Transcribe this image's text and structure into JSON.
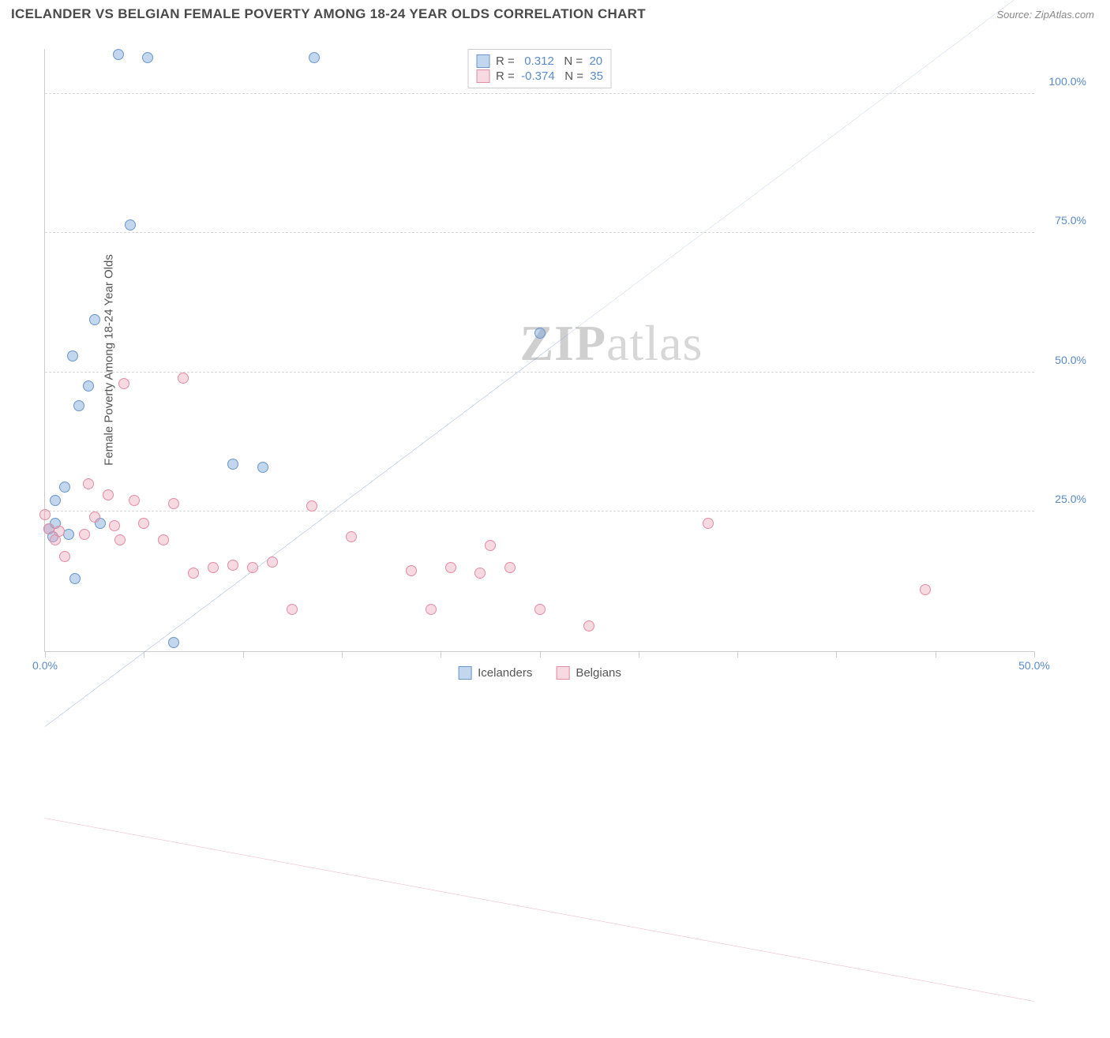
{
  "header": {
    "title": "ICELANDER VS BELGIAN FEMALE POVERTY AMONG 18-24 YEAR OLDS CORRELATION CHART",
    "source": "Source: ZipAtlas.com"
  },
  "watermark": {
    "zip": "ZIP",
    "rest": "atlas"
  },
  "chart": {
    "type": "scatter",
    "y_label": "Female Poverty Among 18-24 Year Olds",
    "xlim": [
      0,
      50
    ],
    "ylim": [
      0,
      108
    ],
    "x_ticks": [
      0,
      5,
      10,
      15,
      20,
      25,
      30,
      35,
      40,
      45,
      50
    ],
    "x_tick_labels": {
      "0": "0.0%",
      "50": "50.0%"
    },
    "y_gridlines": [
      25,
      50,
      75,
      100
    ],
    "y_tick_labels": {
      "25": "25.0%",
      "50": "50.0%",
      "75": "75.0%",
      "100": "100.0%"
    },
    "marker_size": 14,
    "background_color": "#ffffff",
    "grid_color": "#d8d8d8",
    "axis_color": "#cccccc",
    "tick_label_color": "#5b8ac7",
    "series": [
      {
        "name": "Icelanders",
        "R": "0.312",
        "N": "20",
        "color_fill": "rgba(120,165,216,0.45)",
        "color_stroke": "#6a96c9",
        "trend": {
          "x1": 0,
          "y1": 34,
          "x2": 50,
          "y2": 115,
          "solid_to_x": 26,
          "color": "#2f6bc0",
          "width": 2.5
        },
        "points": [
          [
            3.7,
            107
          ],
          [
            5.2,
            106.5
          ],
          [
            13.6,
            106.5
          ],
          [
            4.3,
            76.5
          ],
          [
            2.5,
            59.5
          ],
          [
            1.4,
            53
          ],
          [
            2.2,
            47.5
          ],
          [
            1.7,
            44
          ],
          [
            9.5,
            33.5
          ],
          [
            11,
            33
          ],
          [
            25,
            57
          ],
          [
            1.0,
            29.5
          ],
          [
            0.5,
            27
          ],
          [
            0.2,
            22
          ],
          [
            0.5,
            23
          ],
          [
            0.4,
            20.5
          ],
          [
            1.2,
            21
          ],
          [
            2.8,
            23
          ],
          [
            1.5,
            13
          ],
          [
            6.5,
            1.5
          ]
        ]
      },
      {
        "name": "Belgians",
        "R": "-0.374",
        "N": "35",
        "color_fill": "rgba(235,160,180,0.4)",
        "color_stroke": "#e28ca3",
        "trend": {
          "x1": 0,
          "y1": 24,
          "x2": 50,
          "y2": 4,
          "solid_to_x": 50,
          "color": "#e07a95",
          "width": 2.5
        },
        "points": [
          [
            0.0,
            24.5
          ],
          [
            0.2,
            22
          ],
          [
            0.5,
            20
          ],
          [
            0.7,
            21.5
          ],
          [
            1.0,
            17
          ],
          [
            2.2,
            30
          ],
          [
            2.5,
            24
          ],
          [
            3.2,
            28
          ],
          [
            3.5,
            22.5
          ],
          [
            4.5,
            27
          ],
          [
            3.8,
            20
          ],
          [
            2.0,
            21
          ],
          [
            5.0,
            23
          ],
          [
            6.0,
            20
          ],
          [
            7.0,
            49
          ],
          [
            7.5,
            14
          ],
          [
            8.5,
            15
          ],
          [
            9.5,
            15.5
          ],
          [
            10.5,
            15
          ],
          [
            11.5,
            16
          ],
          [
            12.5,
            7.5
          ],
          [
            13.5,
            26
          ],
          [
            15.5,
            20.5
          ],
          [
            18.5,
            14.5
          ],
          [
            19.5,
            7.5
          ],
          [
            20.5,
            15
          ],
          [
            22.5,
            19
          ],
          [
            23.5,
            15
          ],
          [
            25.0,
            7.5
          ],
          [
            27.5,
            4.5
          ],
          [
            33.5,
            23
          ],
          [
            44.5,
            11
          ],
          [
            4.0,
            48
          ],
          [
            6.5,
            26.5
          ],
          [
            22.0,
            14
          ]
        ]
      }
    ],
    "stats_legend_labels": {
      "R": "R =",
      "N": "N ="
    },
    "bottom_legend": [
      "Icelanders",
      "Belgians"
    ]
  }
}
